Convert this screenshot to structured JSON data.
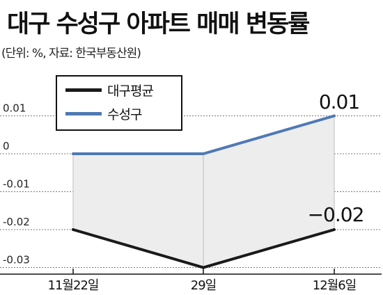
{
  "title": "대구 수성구 아파트 매매 변동률",
  "subtitle": "(단위: %, 자료: 한국부동산원)",
  "colors": {
    "daegu": "#1a1a1a",
    "suseong": "#4f79b5",
    "gridline": "#777777",
    "band": "#ededed"
  },
  "chart_data": {
    "type": "line",
    "title": "대구 수성구 아파트 매매 변동률",
    "subtitle": "(단위: %, 자료: 한국부동산원)",
    "categories": [
      "11월22일",
      "29일",
      "12월6일"
    ],
    "series": [
      {
        "name": "대구평균",
        "values": [
          -0.02,
          -0.03,
          -0.02
        ]
      },
      {
        "name": "수성구",
        "values": [
          0,
          0,
          0.01
        ]
      }
    ],
    "y_ticks": [
      "0.01",
      "0",
      "-0.01",
      "-0.02",
      "-0.03"
    ],
    "y_tick_values": [
      0.01,
      0,
      -0.01,
      -0.02,
      -0.03
    ],
    "ylim": [
      -0.03,
      0.01
    ],
    "grid": "dotted horizontal",
    "legend_position": "top-left",
    "annotations": [
      "0.01",
      "−0.02"
    ]
  }
}
